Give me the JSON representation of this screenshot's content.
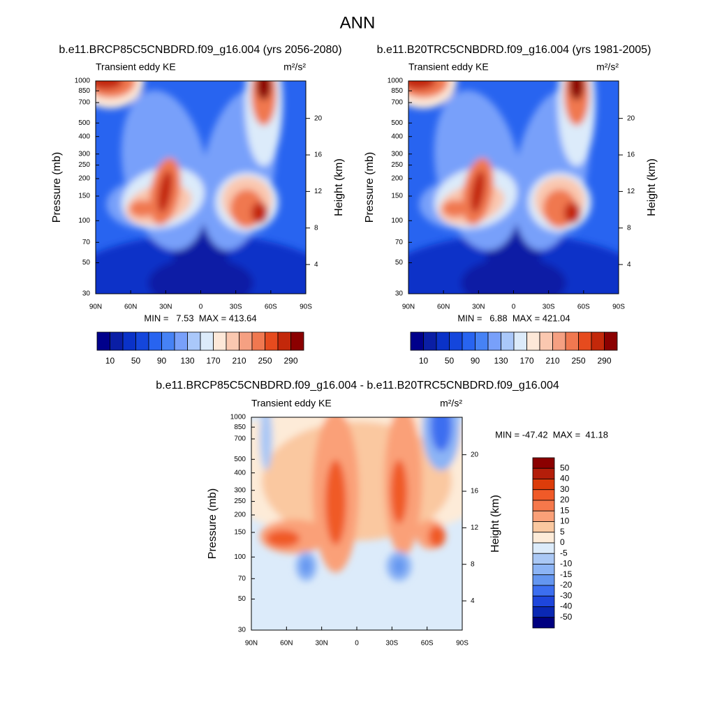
{
  "chart_data": {
    "type": "contour",
    "title": "ANN",
    "panels": [
      {
        "title": "b.e11.BRCP85C5CNBDRD.f09_g16.004 (yrs 2056-2080)",
        "left_label": "Transient eddy KE",
        "units": "m²/s²",
        "ylabel": "Pressure (mb)",
        "y2label": "Height (km)",
        "ylim": [
          1000,
          30
        ],
        "yticks": [
          30,
          50,
          70,
          100,
          150,
          200,
          250,
          300,
          400,
          500,
          700,
          850,
          1000
        ],
        "y2lim": [
          0.8,
          24.1
        ],
        "y2ticks": [
          4,
          8,
          12,
          16,
          20
        ],
        "xticks": [
          "90N",
          "60N",
          "30N",
          "0",
          "30S",
          "60S",
          "90S"
        ],
        "stats": "MIN =   7.53  MAX = 413.64",
        "colorbar": {
          "orientation": "horizontal",
          "colors": [
            "#00008b",
            "#0a1ea5",
            "#0a32c8",
            "#1446dc",
            "#2864f0",
            "#4682f5",
            "#78a0fa",
            "#aac8fa",
            "#dcebfa",
            "#fde8d8",
            "#fac8b0",
            "#f5a082",
            "#f07850",
            "#e64b1e",
            "#c3280a",
            "#8b0000"
          ],
          "labels": [
            10,
            50,
            90,
            130,
            170,
            210,
            250,
            290
          ]
        }
      },
      {
        "title": "b.e11.B20TRC5CNBDRD.f09_g16.004 (yrs 1981-2005)",
        "left_label": "Transient eddy KE",
        "units": "m²/s²",
        "ylabel": "Pressure (mb)",
        "y2label": "Height (km)",
        "ylim": [
          1000,
          30
        ],
        "yticks": [
          30,
          50,
          70,
          100,
          150,
          200,
          250,
          300,
          400,
          500,
          700,
          850,
          1000
        ],
        "y2lim": [
          0.8,
          24.1
        ],
        "y2ticks": [
          4,
          8,
          12,
          16,
          20
        ],
        "xticks": [
          "90N",
          "60N",
          "30N",
          "0",
          "30S",
          "60S",
          "90S"
        ],
        "stats": "MIN =   6.88  MAX = 421.04",
        "colorbar": {
          "orientation": "horizontal",
          "colors": [
            "#00008b",
            "#0a1ea5",
            "#0a32c8",
            "#1446dc",
            "#2864f0",
            "#4682f5",
            "#78a0fa",
            "#aac8fa",
            "#dcebfa",
            "#fde8d8",
            "#fac8b0",
            "#f5a082",
            "#f07850",
            "#e64b1e",
            "#c3280a",
            "#8b0000"
          ],
          "labels": [
            10,
            50,
            90,
            130,
            170,
            210,
            250,
            290
          ]
        }
      },
      {
        "title": "b.e11.BRCP85C5CNBDRD.f09_g16.004 - b.e11.B20TRC5CNBDRD.f09_g16.004",
        "left_label": "Transient eddy KE",
        "units": "m²/s²",
        "ylabel": "Pressure (mb)",
        "y2label": "Height (km)",
        "ylim": [
          1000,
          30
        ],
        "yticks": [
          30,
          50,
          70,
          100,
          150,
          200,
          250,
          300,
          400,
          500,
          700,
          850,
          1000
        ],
        "y2lim": [
          0.8,
          24.1
        ],
        "y2ticks": [
          4,
          8,
          12,
          16,
          20
        ],
        "xticks": [
          "90N",
          "60N",
          "30N",
          "0",
          "30S",
          "60S",
          "90S"
        ],
        "stats": "MIN = -47.42  MAX =  41.18",
        "colorbar": {
          "orientation": "vertical",
          "colors": [
            "#8b0000",
            "#b41e0a",
            "#dc3c0a",
            "#f05a28",
            "#f5784b",
            "#faa078",
            "#fac8a0",
            "#fdebd8",
            "#dcebfa",
            "#aac8f5",
            "#8cb4f5",
            "#6496f0",
            "#3c6ef0",
            "#1e46dc",
            "#0a28b4",
            "#000080"
          ],
          "labels": [
            50,
            40,
            30,
            20,
            15,
            10,
            5,
            0,
            -5,
            -10,
            -15,
            -20,
            -30,
            -40,
            -50
          ]
        }
      }
    ]
  }
}
